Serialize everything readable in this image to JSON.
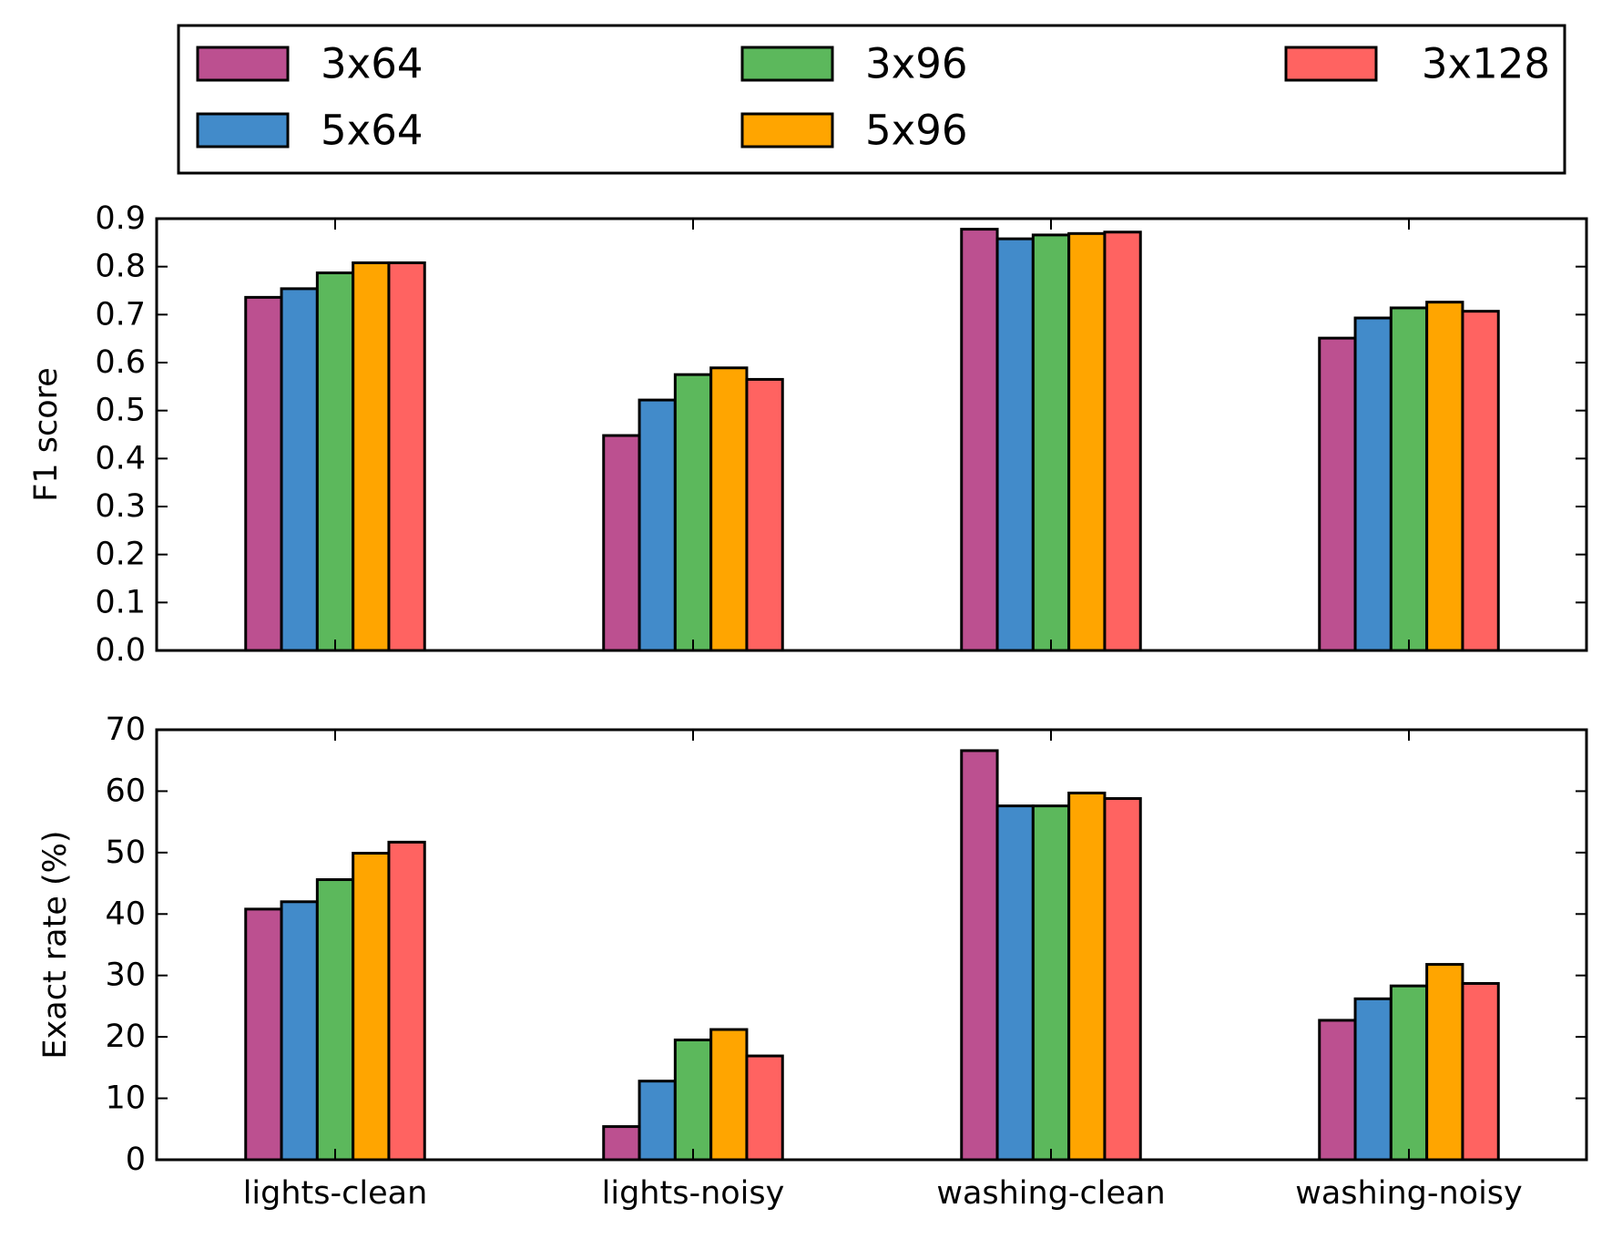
{
  "series_colors": [
    "#bc5090",
    "#428bca",
    "#5cb85c",
    "#ffa500",
    "#ff6361"
  ],
  "chart_data": [
    {
      "type": "bar",
      "categories": [
        "lights-clean",
        "lights-noisy",
        "washing-clean",
        "washing-noisy"
      ],
      "series": [
        {
          "name": "3x64",
          "values": [
            0.736,
            0.448,
            0.878,
            0.651
          ]
        },
        {
          "name": "5x64",
          "values": [
            0.754,
            0.522,
            0.858,
            0.693
          ]
        },
        {
          "name": "3x96",
          "values": [
            0.787,
            0.575,
            0.866,
            0.714
          ]
        },
        {
          "name": "5x96",
          "values": [
            0.808,
            0.589,
            0.869,
            0.726
          ]
        },
        {
          "name": "3x128",
          "values": [
            0.808,
            0.565,
            0.872,
            0.707
          ]
        }
      ],
      "title": "",
      "xlabel": "",
      "ylabel": "F1 score",
      "ylim": [
        0,
        0.9
      ],
      "yticks": [
        "0.0",
        "0.1",
        "0.2",
        "0.3",
        "0.4",
        "0.5",
        "0.6",
        "0.7",
        "0.8",
        "0.9"
      ],
      "show_xtick_labels": false,
      "grid": false
    },
    {
      "type": "bar",
      "categories": [
        "lights-clean",
        "lights-noisy",
        "washing-clean",
        "washing-noisy"
      ],
      "series": [
        {
          "name": "3x64",
          "values": [
            40.8,
            5.4,
            66.6,
            22.7
          ]
        },
        {
          "name": "5x64",
          "values": [
            42.0,
            12.8,
            57.6,
            26.2
          ]
        },
        {
          "name": "3x96",
          "values": [
            45.6,
            19.5,
            57.6,
            28.3
          ]
        },
        {
          "name": "5x96",
          "values": [
            49.9,
            21.2,
            59.7,
            31.8
          ]
        },
        {
          "name": "3x128",
          "values": [
            51.7,
            16.9,
            58.8,
            28.7
          ]
        }
      ],
      "title": "",
      "xlabel": "",
      "ylabel": "Exact rate (%)",
      "ylim": [
        0,
        70
      ],
      "yticks": [
        "0",
        "10",
        "20",
        "30",
        "40",
        "50",
        "60",
        "70"
      ],
      "show_xtick_labels": true,
      "grid": false
    }
  ],
  "legend": {
    "placement": "top",
    "columns": 3,
    "entries": [
      "3x64",
      "5x64",
      "3x96",
      "5x96",
      "3x128"
    ]
  }
}
